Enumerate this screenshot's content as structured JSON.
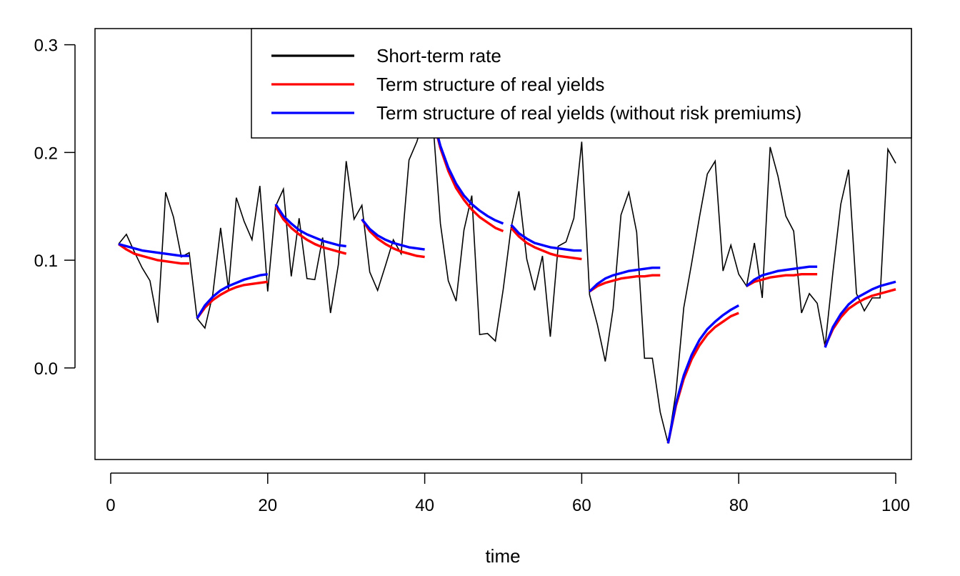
{
  "chart_data": {
    "type": "line",
    "title": "",
    "xlabel": "time",
    "ylabel": "",
    "xlim": [
      -2,
      102
    ],
    "ylim": [
      -0.085,
      0.315
    ],
    "x_ticks": [
      0,
      20,
      40,
      60,
      80,
      100
    ],
    "x_tick_labels": [
      "0",
      "20",
      "40",
      "60",
      "80",
      "100"
    ],
    "y_ticks": [
      0.0,
      0.1,
      0.2,
      0.3
    ],
    "y_tick_labels": [
      "0.0",
      "0.1",
      "0.2",
      "0.3"
    ],
    "grid": false,
    "legend_position": "top-right",
    "series": [
      {
        "name": "Short-term rate",
        "color": "#000000",
        "x": [
          1,
          2,
          3,
          4,
          5,
          6,
          7,
          8,
          9,
          10,
          11,
          12,
          13,
          14,
          15,
          16,
          17,
          18,
          19,
          20,
          21,
          22,
          23,
          24,
          25,
          26,
          27,
          28,
          29,
          30,
          31,
          32,
          33,
          34,
          35,
          36,
          37,
          38,
          39,
          40,
          41,
          42,
          43,
          44,
          45,
          46,
          47,
          48,
          49,
          50,
          51,
          52,
          53,
          54,
          55,
          56,
          57,
          58,
          59,
          60,
          61,
          62,
          63,
          64,
          65,
          66,
          67,
          68,
          69,
          70,
          71,
          72,
          73,
          74,
          75,
          76,
          77,
          78,
          79,
          80,
          81,
          82,
          83,
          84,
          85,
          86,
          87,
          88,
          89,
          90,
          91,
          92,
          93,
          94,
          95,
          96,
          97,
          98,
          99,
          100
        ],
        "y": [
          0.115,
          0.124,
          0.108,
          0.093,
          0.081,
          0.042,
          0.163,
          0.14,
          0.103,
          0.107,
          0.046,
          0.037,
          0.068,
          0.13,
          0.073,
          0.158,
          0.136,
          0.119,
          0.169,
          0.071,
          0.15,
          0.166,
          0.085,
          0.139,
          0.083,
          0.082,
          0.121,
          0.051,
          0.096,
          0.192,
          0.138,
          0.151,
          0.089,
          0.072,
          0.095,
          0.119,
          0.106,
          0.193,
          0.21,
          0.234,
          0.233,
          0.134,
          0.081,
          0.062,
          0.128,
          0.16,
          0.031,
          0.032,
          0.025,
          0.073,
          0.13,
          0.164,
          0.101,
          0.072,
          0.104,
          0.029,
          0.113,
          0.117,
          0.139,
          0.21,
          0.068,
          0.04,
          0.006,
          0.055,
          0.142,
          0.163,
          0.126,
          0.009,
          0.009,
          -0.041,
          -0.07,
          -0.023,
          0.056,
          0.097,
          0.14,
          0.18,
          0.192,
          0.09,
          0.114,
          0.087,
          0.076,
          0.116,
          0.065,
          0.205,
          0.178,
          0.141,
          0.127,
          0.051,
          0.069,
          0.06,
          0.02,
          0.089,
          0.152,
          0.184,
          0.069,
          0.053,
          0.065,
          0.065,
          0.203,
          0.19
        ]
      },
      {
        "name": "Term structure of real yields",
        "color": "#ff0000",
        "segments": [
          {
            "x": [
              1,
              2,
              3,
              4,
              5,
              6,
              7,
              8,
              9,
              10
            ],
            "y": [
              0.115,
              0.11,
              0.106,
              0.104,
              0.102,
              0.1,
              0.099,
              0.098,
              0.097,
              0.097
            ]
          },
          {
            "x": [
              11,
              12,
              13,
              14,
              15,
              16,
              17,
              18,
              19,
              20
            ],
            "y": [
              0.046,
              0.056,
              0.063,
              0.068,
              0.072,
              0.075,
              0.077,
              0.078,
              0.079,
              0.08
            ]
          },
          {
            "x": [
              21,
              22,
              23,
              24,
              25,
              26,
              27,
              28,
              29,
              30
            ],
            "y": [
              0.15,
              0.138,
              0.13,
              0.124,
              0.119,
              0.115,
              0.112,
              0.11,
              0.108,
              0.106
            ]
          },
          {
            "x": [
              32,
              33,
              34,
              35,
              36,
              37,
              38,
              39,
              40
            ],
            "y": [
              0.138,
              0.127,
              0.12,
              0.115,
              0.111,
              0.108,
              0.106,
              0.104,
              0.103
            ]
          },
          {
            "x": [
              41,
              42,
              43,
              44,
              45,
              46,
              47,
              48,
              49,
              50
            ],
            "y": [
              0.233,
              0.204,
              0.183,
              0.167,
              0.156,
              0.147,
              0.14,
              0.135,
              0.13,
              0.127
            ]
          },
          {
            "x": [
              51,
              52,
              53,
              54,
              55,
              56,
              57,
              58,
              59,
              60
            ],
            "y": [
              0.13,
              0.122,
              0.116,
              0.112,
              0.109,
              0.106,
              0.104,
              0.103,
              0.102,
              0.101
            ]
          },
          {
            "x": [
              61,
              62,
              63,
              64,
              65,
              66,
              67,
              68,
              69,
              70
            ],
            "y": [
              0.071,
              0.076,
              0.079,
              0.081,
              0.083,
              0.084,
              0.085,
              0.085,
              0.086,
              0.086
            ]
          },
          {
            "x": [
              71,
              72,
              73,
              74,
              75,
              76,
              77,
              78,
              79,
              80
            ],
            "y": [
              -0.07,
              -0.035,
              -0.01,
              0.008,
              0.021,
              0.031,
              0.038,
              0.043,
              0.048,
              0.051
            ]
          },
          {
            "x": [
              81,
              82,
              83,
              84,
              85,
              86,
              87,
              88,
              89,
              90
            ],
            "y": [
              0.076,
              0.08,
              0.082,
              0.084,
              0.085,
              0.086,
              0.086,
              0.087,
              0.087,
              0.087
            ]
          },
          {
            "x": [
              91,
              92,
              93,
              94,
              95,
              96,
              97,
              98,
              99,
              100
            ],
            "y": [
              0.02,
              0.036,
              0.047,
              0.055,
              0.06,
              0.064,
              0.067,
              0.069,
              0.071,
              0.073
            ]
          }
        ]
      },
      {
        "name": "Term structure of real yields (without risk premiums)",
        "color": "#0000ff",
        "segments": [
          {
            "x": [
              1,
              2,
              3,
              4,
              5,
              6,
              7,
              8,
              9,
              10
            ],
            "y": [
              0.115,
              0.113,
              0.111,
              0.109,
              0.108,
              0.107,
              0.106,
              0.105,
              0.104,
              0.104
            ]
          },
          {
            "x": [
              11,
              12,
              13,
              14,
              15,
              16,
              17,
              18,
              19,
              20
            ],
            "y": [
              0.046,
              0.058,
              0.066,
              0.072,
              0.076,
              0.079,
              0.082,
              0.084,
              0.086,
              0.087
            ]
          },
          {
            "x": [
              21,
              22,
              23,
              24,
              25,
              26,
              27,
              28,
              29,
              30
            ],
            "y": [
              0.152,
              0.141,
              0.134,
              0.128,
              0.124,
              0.121,
              0.118,
              0.116,
              0.114,
              0.113
            ]
          },
          {
            "x": [
              32,
              33,
              34,
              35,
              36,
              37,
              38,
              39,
              40
            ],
            "y": [
              0.138,
              0.129,
              0.123,
              0.119,
              0.116,
              0.114,
              0.112,
              0.111,
              0.11
            ]
          },
          {
            "x": [
              41,
              42,
              43,
              44,
              45,
              46,
              47,
              48,
              49,
              50
            ],
            "y": [
              0.233,
              0.206,
              0.186,
              0.171,
              0.16,
              0.152,
              0.146,
              0.141,
              0.137,
              0.134
            ]
          },
          {
            "x": [
              51,
              52,
              53,
              54,
              55,
              56,
              57,
              58,
              59,
              60
            ],
            "y": [
              0.133,
              0.125,
              0.12,
              0.116,
              0.114,
              0.112,
              0.111,
              0.11,
              0.109,
              0.109
            ]
          },
          {
            "x": [
              61,
              62,
              63,
              64,
              65,
              66,
              67,
              68,
              69,
              70
            ],
            "y": [
              0.071,
              0.078,
              0.083,
              0.086,
              0.088,
              0.09,
              0.091,
              0.092,
              0.093,
              0.093
            ]
          },
          {
            "x": [
              71,
              72,
              73,
              74,
              75,
              76,
              77,
              78,
              79,
              80
            ],
            "y": [
              -0.07,
              -0.033,
              -0.007,
              0.012,
              0.026,
              0.036,
              0.043,
              0.049,
              0.054,
              0.058
            ]
          },
          {
            "x": [
              81,
              82,
              83,
              84,
              85,
              86,
              87,
              88,
              89,
              90
            ],
            "y": [
              0.076,
              0.082,
              0.086,
              0.088,
              0.09,
              0.091,
              0.092,
              0.093,
              0.094,
              0.094
            ]
          },
          {
            "x": [
              91,
              92,
              93,
              94,
              95,
              96,
              97,
              98,
              99,
              100
            ],
            "y": [
              0.019,
              0.038,
              0.05,
              0.059,
              0.065,
              0.069,
              0.073,
              0.076,
              0.078,
              0.08
            ]
          }
        ]
      }
    ]
  }
}
